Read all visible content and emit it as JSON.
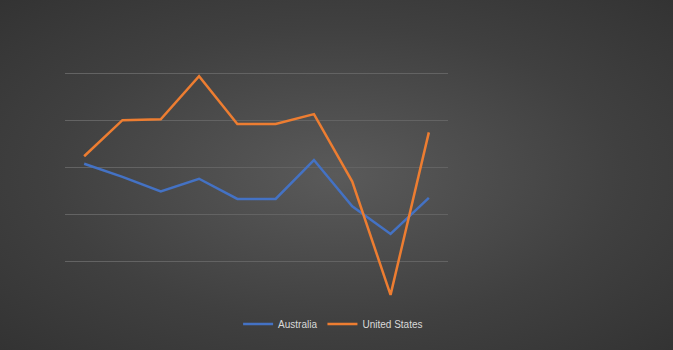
{
  "chart_data": {
    "type": "line",
    "categories": [
      null,
      null,
      null,
      null,
      null,
      null,
      null,
      null,
      null,
      null
    ],
    "series": [
      {
        "name": "Australia",
        "color": "#4472c4",
        "values": [
          3.08,
          2.8,
          2.49,
          2.76,
          2.33,
          2.33,
          3.16,
          2.17,
          1.58,
          2.35
        ]
      },
      {
        "name": "United States",
        "color": "#ed7d31",
        "values": [
          3.24,
          4.01,
          4.03,
          4.95,
          3.93,
          3.93,
          4.14,
          2.7,
          0.28,
          3.75
        ]
      }
    ],
    "ylim": [
      0,
      6
    ],
    "yticks": [
      0,
      1,
      2,
      3,
      4,
      5,
      6
    ],
    "grid": true,
    "legend": "bottom",
    "tick_labels": false
  }
}
